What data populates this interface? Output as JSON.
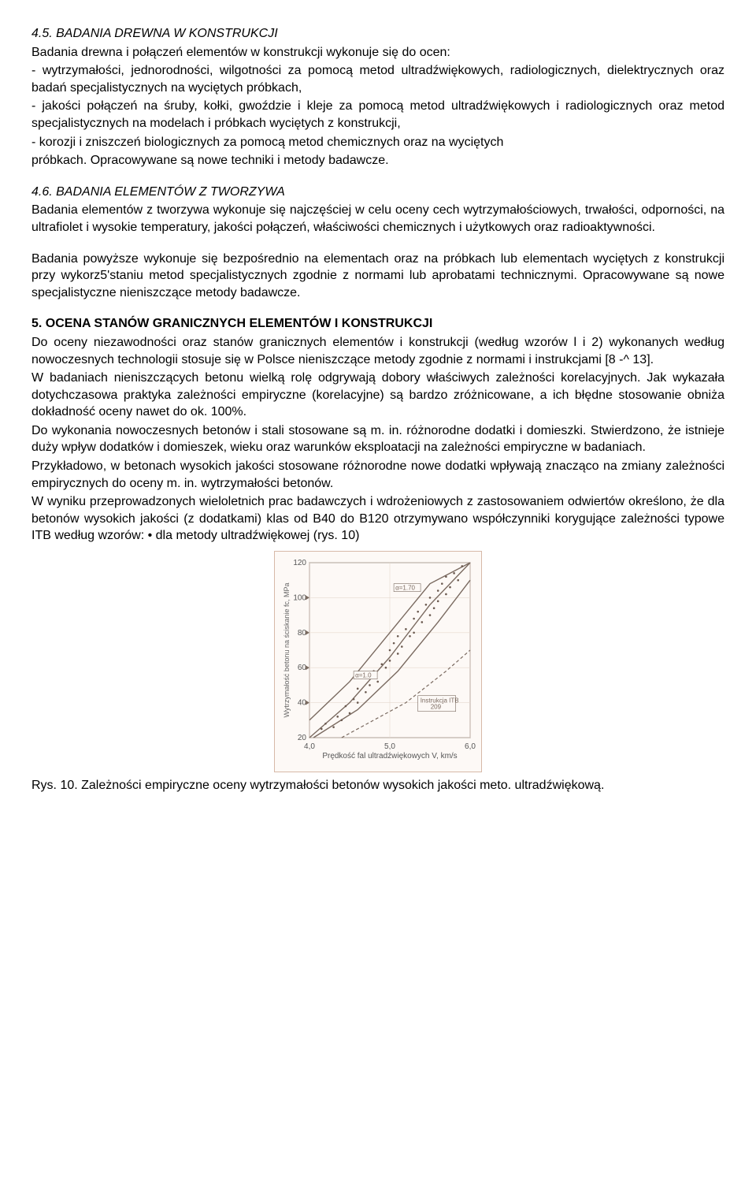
{
  "s45": {
    "title": "4.5. BADANIA DREWNA W KONSTRUKCJI",
    "p1": "Badania drewna i połączeń elementów w konstrukcji wykonuje się do ocen:",
    "b1": "-    wytrzymałości, jednorodności, wilgotności za pomocą metod ultradźwiękowych, radiologicznych, dielektrycznych oraz badań specjalistycznych na wyciętych próbkach,",
    "b2": "-    jakości połączeń na śruby, kołki, gwoździe i kleje za pomocą metod ultradźwiękowych i radiologicznych oraz metod specjalistycznych na modelach i próbkach wyciętych z konstrukcji,",
    "b3": "-    korozji i zniszczeń biologicznych za pomocą metod chemicznych oraz na wyciętych",
    "p2": "próbkach. Opracowywane są nowe techniki i metody badawcze."
  },
  "s46": {
    "title": "4.6. BADANIA ELEMENTÓW Z TWORZYWA",
    "p1": "Badania elementów z tworzywa wykonuje się najczęściej w celu oceny cech wytrzymałościowych, trwałości, odporności, na ultrafiolet i wysokie temperatury, jakości połączeń, właściwości chemicznych i użytkowych oraz radioaktywności.",
    "p2": "Badania powyższe wykonuje się bezpośrednio na elementach oraz na próbkach lub elementach wyciętych z konstrukcji przy wykorz5'staniu metod specjalistycznych zgodnie z normami lub aprobatami technicznymi. Opracowywane są nowe specjalistyczne nieniszczące metody badawcze."
  },
  "s5": {
    "title": "5. OCENA STANÓW GRANICZNYCH ELEMENTÓW I KONSTRUKCJI",
    "p1": "Do oceny niezawodności oraz stanów granicznych elementów i konstrukcji (według wzorów l i 2) wykonanych według nowoczesnych technologii stosuje się w Polsce nieniszczące metody zgodnie z normami i instrukcjami [8 -^ 13].",
    "p2": "W badaniach nieniszczących betonu wielką rolę odgrywają dobory właściwych zależności korelacyjnych. Jak wykazała dotychczasowa praktyka zależności empiryczne (korelacyjne) są bardzo zróżnicowane, a ich błędne stosowanie obniża dokładność oceny nawet do ok. 100%.",
    "p3": "Do wykonania nowoczesnych betonów i stali stosowane są m. in. różnorodne dodatki i domieszki. Stwierdzono, że istnieje duży wpływ dodatków i domieszek, wieku oraz warunków eksploatacji na zależności empiryczne w badaniach.",
    "p4": "Przykładowo, w betonach wysokich jakości stosowane różnorodne nowe dodatki wpływają znacząco na zmiany zależności empirycznych do oceny m. in. wytrzymałości betonów.",
    "p5": "W  wyniku  przeprowadzonych  wieloletnich   prac  badawczych   i   wdrożeniowych   z zastosowaniem odwiertów określono, że dla betonów wysokich jakości (z dodatkami) klas od B40 do B120 otrzymywano współczynniki korygujące zależności    typowe ITB według wzorów: •    dla metody ultradźwiękowej (rys. 10)"
  },
  "chart": {
    "type": "scatter-with-curves",
    "background_color": "#fdf9f6",
    "border_color": "#d7b9a8",
    "grid_color": "#e6d9cf",
    "curve_color": "#7a6a60",
    "point_color": "#6b5a50",
    "ylabel": "Wytrzymałość betonu na ściskanie fc, MPa",
    "xlabel": "Prędkość fal ultradźwiękowych  V, km/s",
    "xlim": [
      4.0,
      6.0
    ],
    "ylim": [
      20,
      120
    ],
    "xticks": [
      "4,0",
      "5,0",
      "6,0"
    ],
    "yticks": [
      20,
      40,
      60,
      80,
      100,
      120
    ],
    "band_labels": [
      "α=1.70",
      "α=1.0"
    ],
    "legend_box": "Instrukcja ITB 209",
    "points": [
      [
        4.15,
        25
      ],
      [
        4.2,
        28
      ],
      [
        4.3,
        26
      ],
      [
        4.35,
        32
      ],
      [
        4.4,
        30
      ],
      [
        4.45,
        38
      ],
      [
        4.5,
        34
      ],
      [
        4.55,
        42
      ],
      [
        4.6,
        40
      ],
      [
        4.6,
        48
      ],
      [
        4.7,
        46
      ],
      [
        4.7,
        54
      ],
      [
        4.75,
        50
      ],
      [
        4.8,
        58
      ],
      [
        4.85,
        52
      ],
      [
        4.9,
        62
      ],
      [
        4.95,
        60
      ],
      [
        5.0,
        70
      ],
      [
        5.0,
        64
      ],
      [
        5.05,
        74
      ],
      [
        5.1,
        68
      ],
      [
        5.1,
        78
      ],
      [
        5.15,
        72
      ],
      [
        5.2,
        82
      ],
      [
        5.25,
        78
      ],
      [
        5.3,
        88
      ],
      [
        5.3,
        80
      ],
      [
        5.35,
        92
      ],
      [
        5.4,
        86
      ],
      [
        5.45,
        96
      ],
      [
        5.5,
        90
      ],
      [
        5.5,
        100
      ],
      [
        5.55,
        94
      ],
      [
        5.6,
        104
      ],
      [
        5.6,
        98
      ],
      [
        5.65,
        108
      ],
      [
        5.7,
        102
      ],
      [
        5.7,
        112
      ],
      [
        5.75,
        106
      ],
      [
        5.8,
        114
      ],
      [
        5.85,
        110
      ],
      [
        5.9,
        118
      ]
    ],
    "curves": {
      "center": [
        [
          4.0,
          20
        ],
        [
          4.5,
          40
        ],
        [
          5.0,
          66
        ],
        [
          5.5,
          96
        ],
        [
          6.0,
          120
        ]
      ],
      "upper": [
        [
          4.0,
          30
        ],
        [
          4.5,
          52
        ],
        [
          5.0,
          80
        ],
        [
          5.5,
          108
        ],
        [
          6.0,
          120
        ]
      ],
      "lower": [
        [
          4.05,
          20
        ],
        [
          4.6,
          36
        ],
        [
          5.1,
          58
        ],
        [
          5.6,
          86
        ],
        [
          6.0,
          110
        ]
      ],
      "itb": [
        [
          4.4,
          20
        ],
        [
          5.2,
          40
        ],
        [
          5.7,
          58
        ],
        [
          6.0,
          70
        ]
      ]
    }
  },
  "caption": "Rys. 10. Zależności empiryczne oceny wytrzymałości betonów wysokich jakości meto. ultradźwiękową."
}
